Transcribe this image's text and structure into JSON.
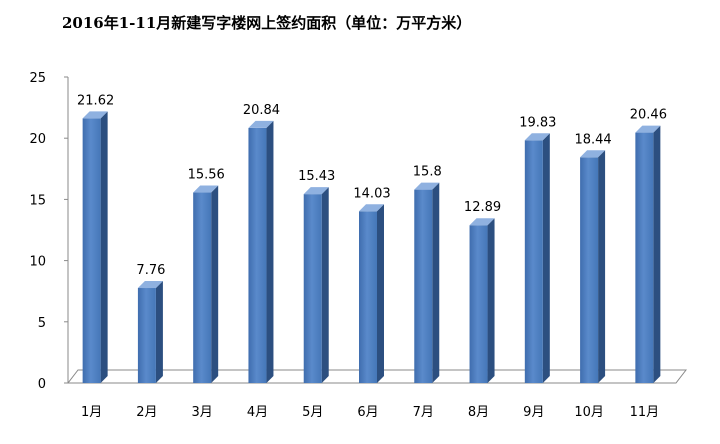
{
  "chart_data": {
    "type": "bar",
    "title": "2016年1-11月新建写字楼网上签约面积（单位：万平方米）",
    "xlabel": "",
    "ylabel": "",
    "categories": [
      "1月",
      "2月",
      "3月",
      "4月",
      "5月",
      "6月",
      "7月",
      "8月",
      "9月",
      "10月",
      "11月"
    ],
    "series": [
      {
        "values": [
          21.62,
          7.76,
          15.56,
          20.84,
          15.43,
          14.03,
          15.8,
          12.89,
          19.83,
          18.44,
          20.46
        ],
        "color": "#4A7BBF"
      }
    ],
    "data_labels": [
      "21.62",
      "7.76",
      "15.56",
      "20.84",
      "15.43",
      "14.03",
      "15.8",
      "12.89",
      "19.83",
      "18.44",
      "20.46"
    ],
    "ylim": [
      0,
      25
    ],
    "yticks": [
      0,
      5,
      10,
      15,
      20,
      25
    ],
    "ytick_labels": [
      "0",
      "5",
      "10",
      "15",
      "20",
      "25"
    ],
    "grid": false,
    "legend": "none",
    "style": "3d-column"
  }
}
